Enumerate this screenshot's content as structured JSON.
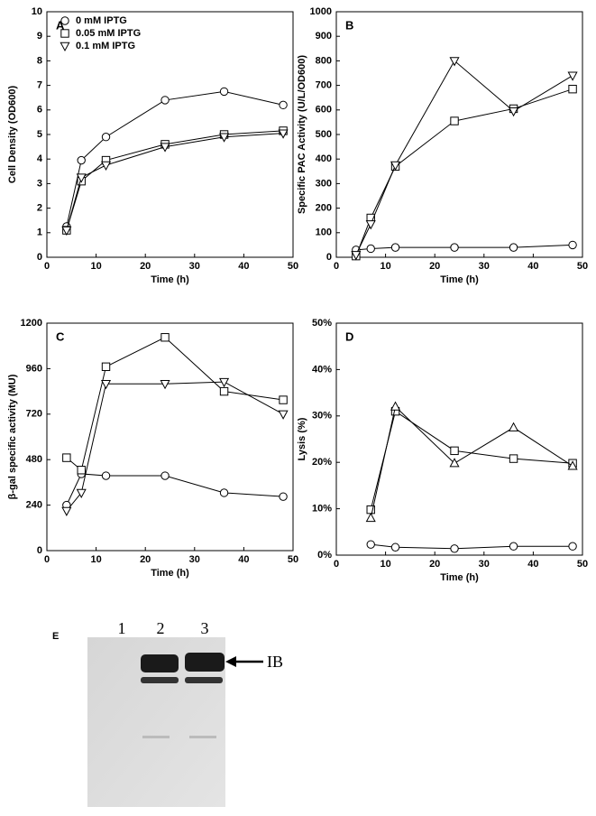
{
  "chart_data": [
    {
      "type": "line",
      "panel_label": "A",
      "x_label": "Time (h)",
      "y_label": "Cell Density (OD600)",
      "x": [
        4,
        7,
        12,
        24,
        36,
        48
      ],
      "series": [
        {
          "name": "0 mM IPTG",
          "color": "#000000",
          "marker": "circle",
          "values": [
            1.25,
            3.95,
            4.9,
            6.4,
            6.75,
            6.2
          ]
        },
        {
          "name": "0.05 mM IPTG",
          "color": "#000000",
          "marker": "square",
          "values": [
            1.1,
            3.1,
            3.95,
            4.6,
            5.0,
            5.15
          ]
        },
        {
          "name": "0.1 mM IPTG",
          "color": "#000000",
          "marker": "triangle-down",
          "values": [
            1.1,
            3.25,
            3.75,
            4.5,
            4.9,
            5.05
          ]
        }
      ],
      "xlim": [
        0,
        50
      ],
      "xticks": [
        0,
        10,
        20,
        30,
        40,
        50
      ],
      "ylim": [
        0,
        10
      ],
      "yticks": [
        0,
        1,
        2,
        3,
        4,
        5,
        6,
        7,
        8,
        9,
        10
      ],
      "legend": "top-left"
    },
    {
      "type": "line",
      "panel_label": "B",
      "x_label": "Time (h)",
      "y_label": "Specific PAC Activity (U/L/OD600)",
      "x": [
        4,
        7,
        12,
        24,
        36,
        48
      ],
      "series": [
        {
          "name": "0 mM IPTG",
          "color": "#000000",
          "marker": "circle",
          "values": [
            30,
            35,
            40,
            40,
            40,
            50
          ]
        },
        {
          "name": "0.05 mM IPTG",
          "color": "#000000",
          "marker": "square",
          "values": [
            5,
            160,
            370,
            555,
            605,
            685
          ]
        },
        {
          "name": "0.1 mM IPTG",
          "color": "#000000",
          "marker": "triangle-down",
          "values": [
            10,
            135,
            375,
            800,
            595,
            740
          ]
        }
      ],
      "xlim": [
        0,
        50
      ],
      "xticks": [
        0,
        10,
        20,
        30,
        40,
        50
      ],
      "ylim": [
        0,
        1000
      ],
      "yticks": [
        0,
        100,
        200,
        300,
        400,
        500,
        600,
        700,
        800,
        900,
        1000
      ],
      "legend": "none"
    },
    {
      "type": "line",
      "panel_label": "C",
      "x_label": "Time (h)",
      "y_label": "β-gal specific activity (MU)",
      "x": [
        4,
        7,
        12,
        24,
        36,
        48
      ],
      "series": [
        {
          "name": "0 mM IPTG",
          "color": "#000000",
          "marker": "circle",
          "values": [
            240,
            405,
            395,
            395,
            305,
            285
          ]
        },
        {
          "name": "0.05 mM IPTG",
          "color": "#000000",
          "marker": "square",
          "values": [
            490,
            425,
            970,
            1125,
            840,
            795
          ]
        },
        {
          "name": "0.1 mM IPTG",
          "color": "#000000",
          "marker": "triangle-down",
          "values": [
            210,
            305,
            880,
            880,
            890,
            720
          ]
        }
      ],
      "xlim": [
        0,
        50
      ],
      "xticks": [
        0,
        10,
        20,
        30,
        40,
        50
      ],
      "ylim": [
        0,
        1200
      ],
      "yticks": [
        0,
        240,
        480,
        720,
        960,
        1200
      ],
      "legend": "none"
    },
    {
      "type": "line",
      "panel_label": "D",
      "x_label": "Time (h)",
      "y_label": "Lysis (%)",
      "x": [
        7,
        12,
        24,
        36,
        48
      ],
      "series": [
        {
          "name": "0 mM IPTG",
          "color": "#000000",
          "marker": "circle",
          "values": [
            2.3,
            1.7,
            1.4,
            1.9,
            1.9
          ]
        },
        {
          "name": "0.05 mM IPTG",
          "color": "#000000",
          "marker": "square",
          "values": [
            9.8,
            31,
            22.5,
            20.8,
            19.8
          ]
        },
        {
          "name": "0.1 mM IPTG",
          "color": "#000000",
          "marker": "triangle-up",
          "values": [
            8,
            32,
            19.8,
            27.5,
            19.2
          ]
        }
      ],
      "xlim": [
        0,
        50
      ],
      "xticks": [
        0,
        10,
        20,
        30,
        40,
        50
      ],
      "ylim": [
        0,
        50
      ],
      "yticks": [
        {
          "value": 0,
          "label": "0%"
        },
        {
          "value": 10,
          "label": "10%"
        },
        {
          "value": 20,
          "label": "20%"
        },
        {
          "value": 30,
          "label": "30%"
        },
        {
          "value": 40,
          "label": "40%"
        },
        {
          "value": 50,
          "label": "50%"
        }
      ],
      "legend": "none"
    }
  ],
  "gel": {
    "panel_label": "E",
    "lanes": [
      "1",
      "2",
      "3"
    ],
    "band_label": "IB"
  }
}
